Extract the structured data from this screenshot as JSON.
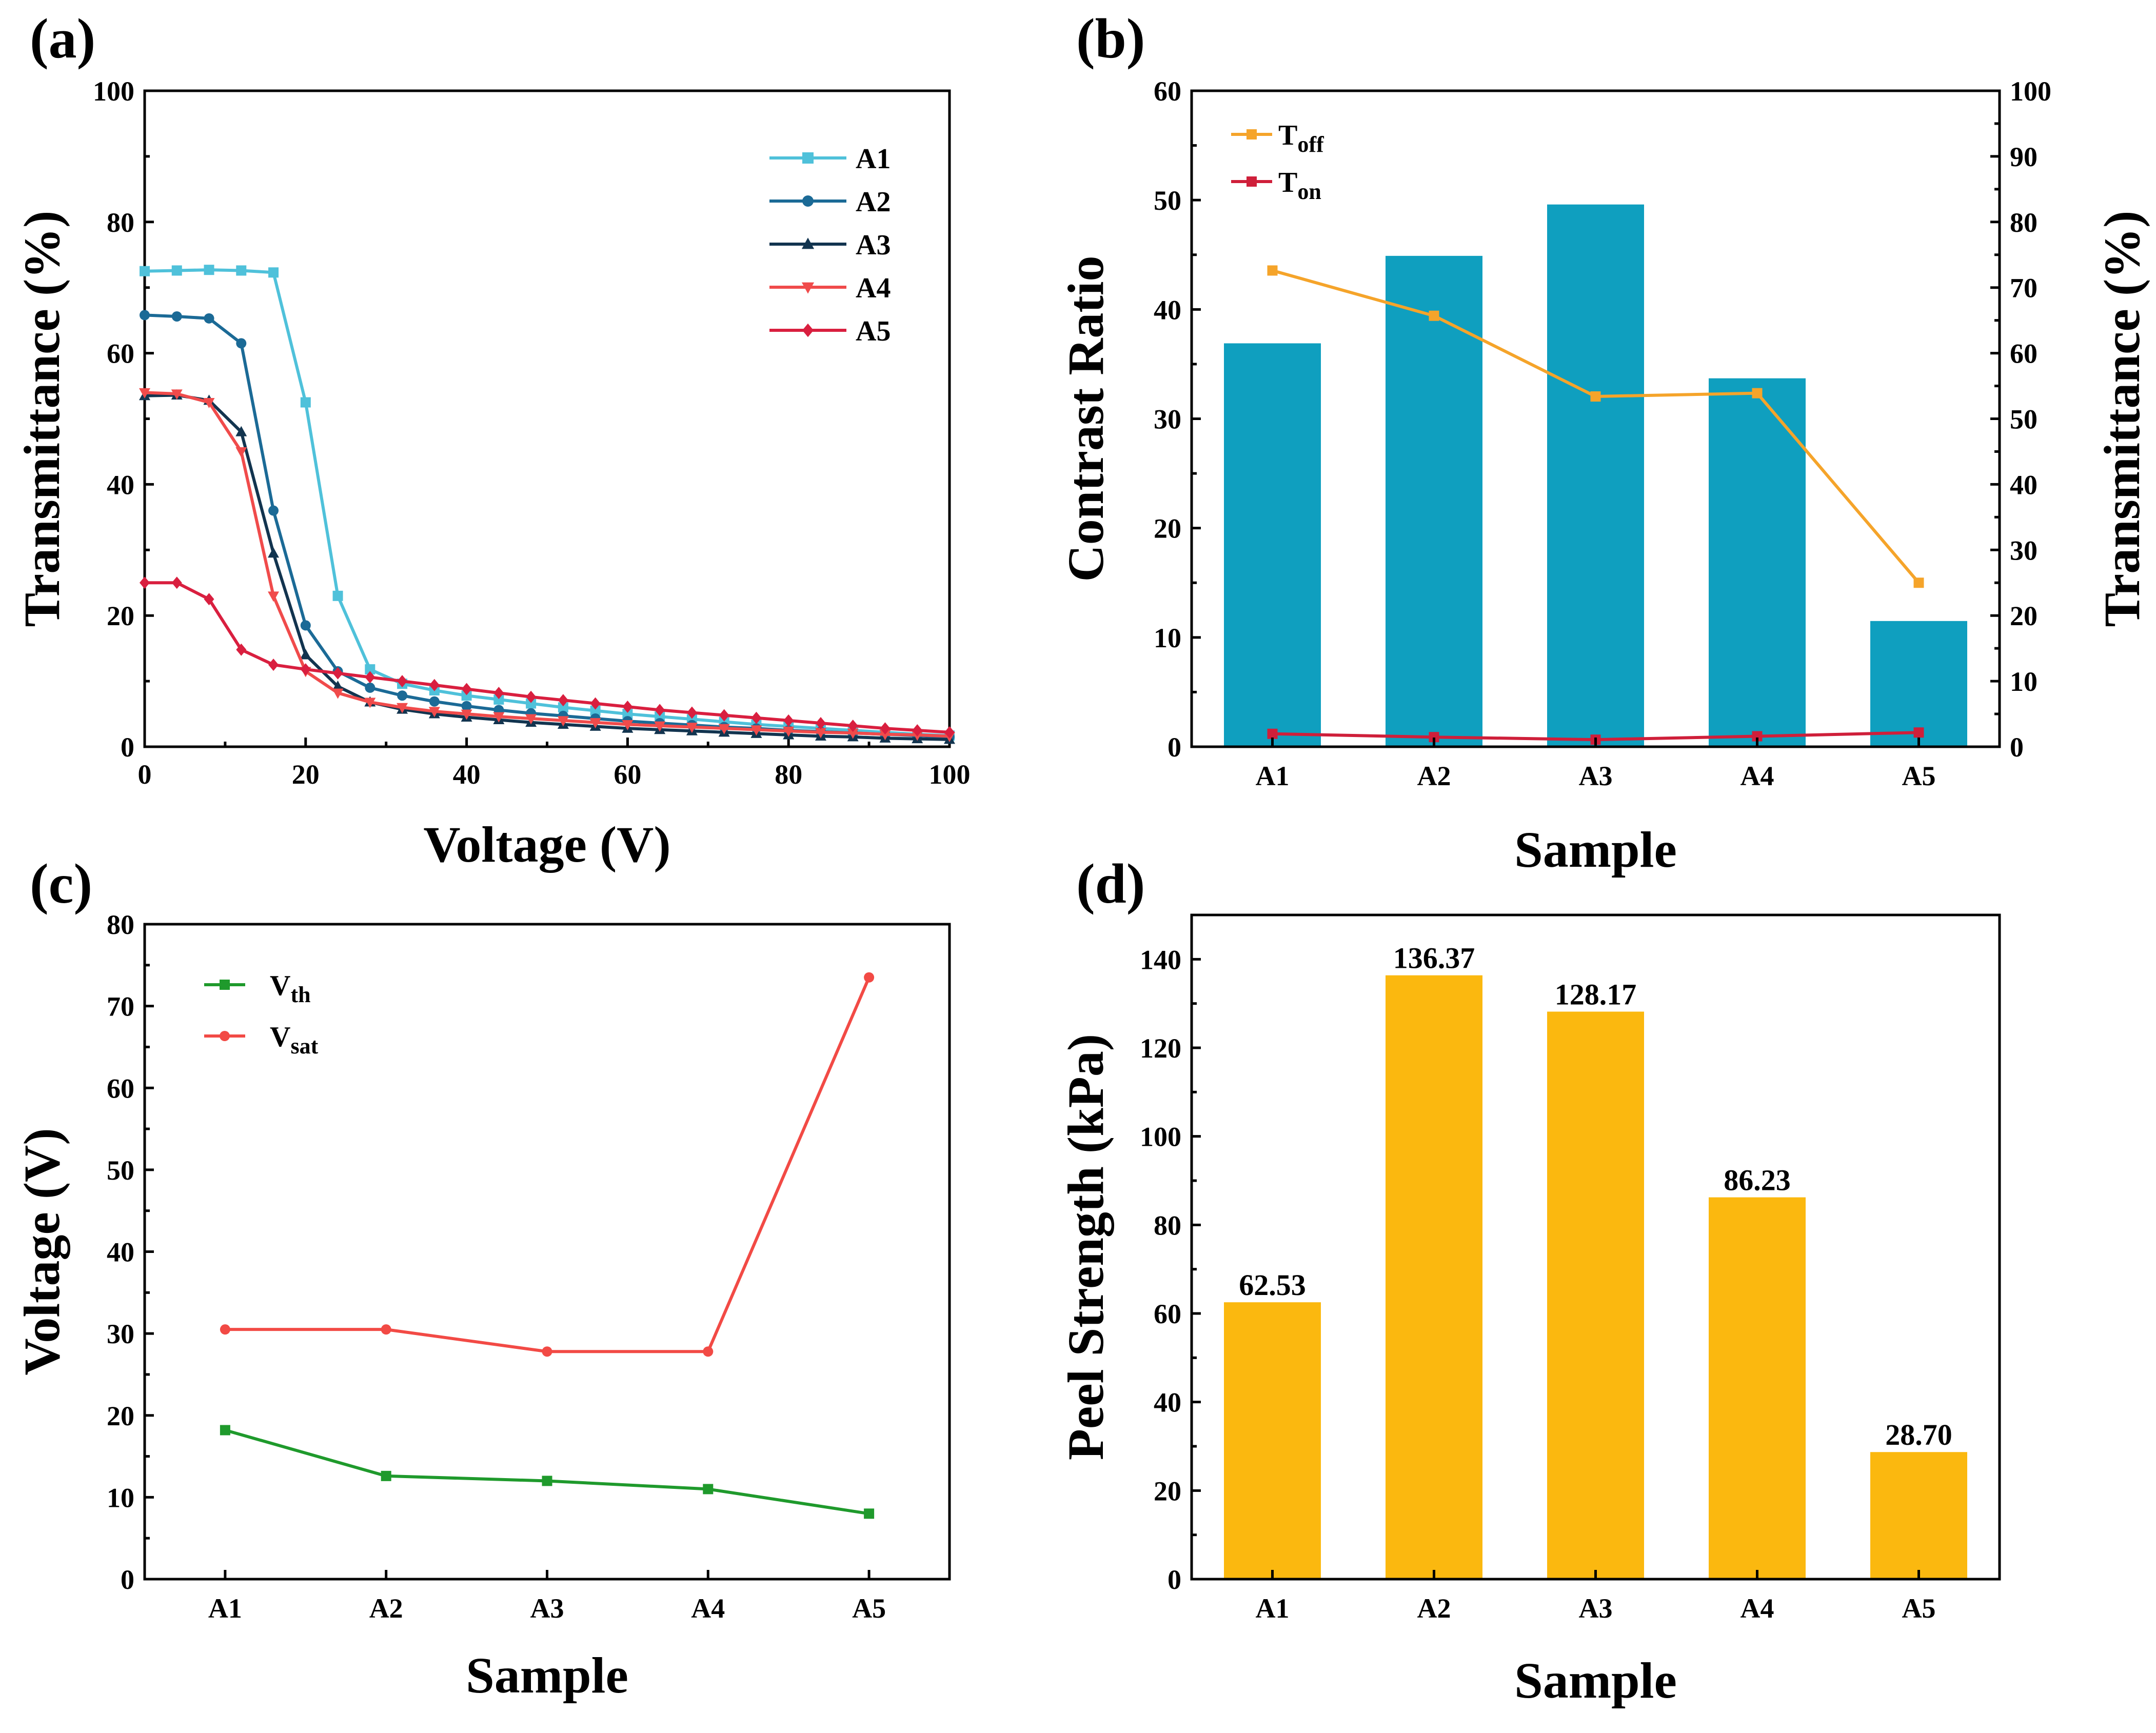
{
  "colors": {
    "A1": "#4fc1da",
    "A2": "#1b6a96",
    "A3": "#12344f",
    "A4": "#f04b4b",
    "A5": "#d91f3f",
    "contrast_bar": "#0f9fbf",
    "toff": "#f5a42a",
    "ton": "#cf1f3a",
    "vth": "#1f9a2c",
    "vsat": "#f24a45",
    "peel_bar": "#fbb80f"
  },
  "chart_data": [
    {
      "panel": "(a)",
      "type": "line",
      "xlabel": "Voltage (V)",
      "ylabel": "Transmittance (%)",
      "xlim": [
        0,
        100
      ],
      "ylim": [
        0,
        100
      ],
      "xticks": [
        "0",
        "20",
        "40",
        "60",
        "80",
        "100"
      ],
      "yticks": [
        "0",
        "20",
        "40",
        "60",
        "80",
        "100"
      ],
      "legend_position": "top-right",
      "series": [
        {
          "name": "A1",
          "marker": "square",
          "x": [
            0,
            4,
            8,
            12,
            16,
            20,
            24,
            28,
            32,
            36,
            40,
            44,
            48,
            52,
            56,
            60,
            64,
            68,
            72,
            76,
            80,
            84,
            88,
            92,
            96,
            100
          ],
          "y": [
            72.5,
            72.6,
            72.7,
            72.6,
            72.3,
            52.5,
            23.0,
            11.8,
            9.6,
            8.6,
            7.8,
            7.2,
            6.6,
            6.0,
            5.5,
            5.0,
            4.6,
            4.2,
            3.8,
            3.4,
            3.1,
            2.8,
            2.5,
            2.2,
            1.9,
            1.7
          ]
        },
        {
          "name": "A2",
          "marker": "circle",
          "x": [
            0,
            4,
            8,
            12,
            16,
            20,
            24,
            28,
            32,
            36,
            40,
            44,
            48,
            52,
            56,
            60,
            64,
            68,
            72,
            76,
            80,
            84,
            88,
            92,
            96,
            100
          ],
          "y": [
            65.8,
            65.6,
            65.3,
            61.5,
            36.0,
            18.5,
            11.5,
            9.0,
            7.8,
            6.9,
            6.2,
            5.6,
            5.1,
            4.7,
            4.3,
            3.9,
            3.6,
            3.3,
            3.0,
            2.8,
            2.5,
            2.3,
            2.1,
            1.9,
            1.7,
            1.5
          ]
        },
        {
          "name": "A3",
          "marker": "triangle-up",
          "x": [
            0,
            4,
            8,
            12,
            16,
            20,
            24,
            28,
            32,
            36,
            40,
            44,
            48,
            52,
            56,
            60,
            64,
            68,
            72,
            76,
            80,
            84,
            88,
            92,
            96,
            100
          ],
          "y": [
            53.5,
            53.6,
            52.8,
            48.0,
            29.5,
            14.0,
            9.2,
            6.8,
            5.7,
            5.0,
            4.5,
            4.1,
            3.7,
            3.4,
            3.1,
            2.8,
            2.6,
            2.4,
            2.2,
            2.0,
            1.8,
            1.6,
            1.5,
            1.3,
            1.2,
            1.1
          ]
        },
        {
          "name": "A4",
          "marker": "triangle-down",
          "x": [
            0,
            4,
            8,
            12,
            16,
            20,
            24,
            28,
            32,
            36,
            40,
            44,
            48,
            52,
            56,
            60,
            64,
            68,
            72,
            76,
            80,
            84,
            88,
            92,
            96,
            100
          ],
          "y": [
            54.0,
            53.8,
            52.5,
            45.0,
            23.0,
            11.5,
            8.2,
            6.8,
            6.0,
            5.4,
            5.0,
            4.6,
            4.3,
            4.0,
            3.7,
            3.4,
            3.2,
            3.0,
            2.8,
            2.6,
            2.4,
            2.2,
            2.1,
            1.9,
            1.8,
            1.6
          ]
        },
        {
          "name": "A5",
          "marker": "diamond",
          "x": [
            0,
            4,
            8,
            12,
            16,
            20,
            24,
            28,
            32,
            36,
            40,
            44,
            48,
            52,
            56,
            60,
            64,
            68,
            72,
            76,
            80,
            84,
            88,
            92,
            96,
            100
          ],
          "y": [
            25.0,
            25.0,
            22.5,
            14.8,
            12.5,
            11.8,
            11.2,
            10.6,
            10.0,
            9.4,
            8.8,
            8.2,
            7.6,
            7.1,
            6.6,
            6.1,
            5.6,
            5.2,
            4.8,
            4.4,
            4.0,
            3.6,
            3.2,
            2.8,
            2.5,
            2.2
          ]
        }
      ]
    },
    {
      "panel": "(b)",
      "type": "bar",
      "xlabel": "Sample",
      "ylabel": "Contrast Ratio",
      "y2label": "Transmittance (%)",
      "categories": [
        "A1",
        "A2",
        "A3",
        "A4",
        "A5"
      ],
      "ylim": [
        0,
        60
      ],
      "y2lim": [
        0,
        100
      ],
      "yticks": [
        "0",
        "10",
        "20",
        "30",
        "40",
        "50",
        "60"
      ],
      "y2ticks": [
        "0",
        "10",
        "20",
        "30",
        "40",
        "50",
        "60",
        "70",
        "80",
        "90",
        "100"
      ],
      "values": [
        36.9,
        44.9,
        49.6,
        33.7,
        11.5
      ],
      "legend_position": "top-left",
      "line_series": [
        {
          "name": "Toff",
          "base": "T",
          "sub": "off",
          "axis": "right",
          "values": [
            72.6,
            65.7,
            53.4,
            53.9,
            25.0
          ]
        },
        {
          "name": "Ton",
          "base": "T",
          "sub": "on",
          "axis": "right",
          "values": [
            1.97,
            1.47,
            1.08,
            1.6,
            2.17
          ]
        }
      ]
    },
    {
      "panel": "(c)",
      "type": "line",
      "xlabel": "Sample",
      "ylabel": "Voltage (V)",
      "categories": [
        "A1",
        "A2",
        "A3",
        "A4",
        "A5"
      ],
      "ylim": [
        0,
        80
      ],
      "yticks": [
        "0",
        "10",
        "20",
        "30",
        "40",
        "50",
        "60",
        "70",
        "80"
      ],
      "legend_position": "top-left",
      "series": [
        {
          "name": "Vth",
          "base": "V",
          "sub": "th",
          "marker": "square",
          "values": [
            18.2,
            12.6,
            12.0,
            11.0,
            8.0
          ]
        },
        {
          "name": "Vsat",
          "base": "V",
          "sub": "sat",
          "marker": "circle",
          "values": [
            30.5,
            30.5,
            27.8,
            27.8,
            73.5
          ]
        }
      ]
    },
    {
      "panel": "(d)",
      "type": "bar",
      "xlabel": "Sample",
      "ylabel": "Peel Strength (kPa)",
      "categories": [
        "A1",
        "A2",
        "A3",
        "A4",
        "A5"
      ],
      "ylim": [
        0,
        150
      ],
      "yticks": [
        "0",
        "20",
        "40",
        "60",
        "80",
        "100",
        "120",
        "140"
      ],
      "values": [
        62.53,
        136.37,
        128.17,
        86.23,
        28.7
      ],
      "data_labels": [
        "62.53",
        "136.37",
        "128.17",
        "86.23",
        "28.70"
      ]
    }
  ]
}
